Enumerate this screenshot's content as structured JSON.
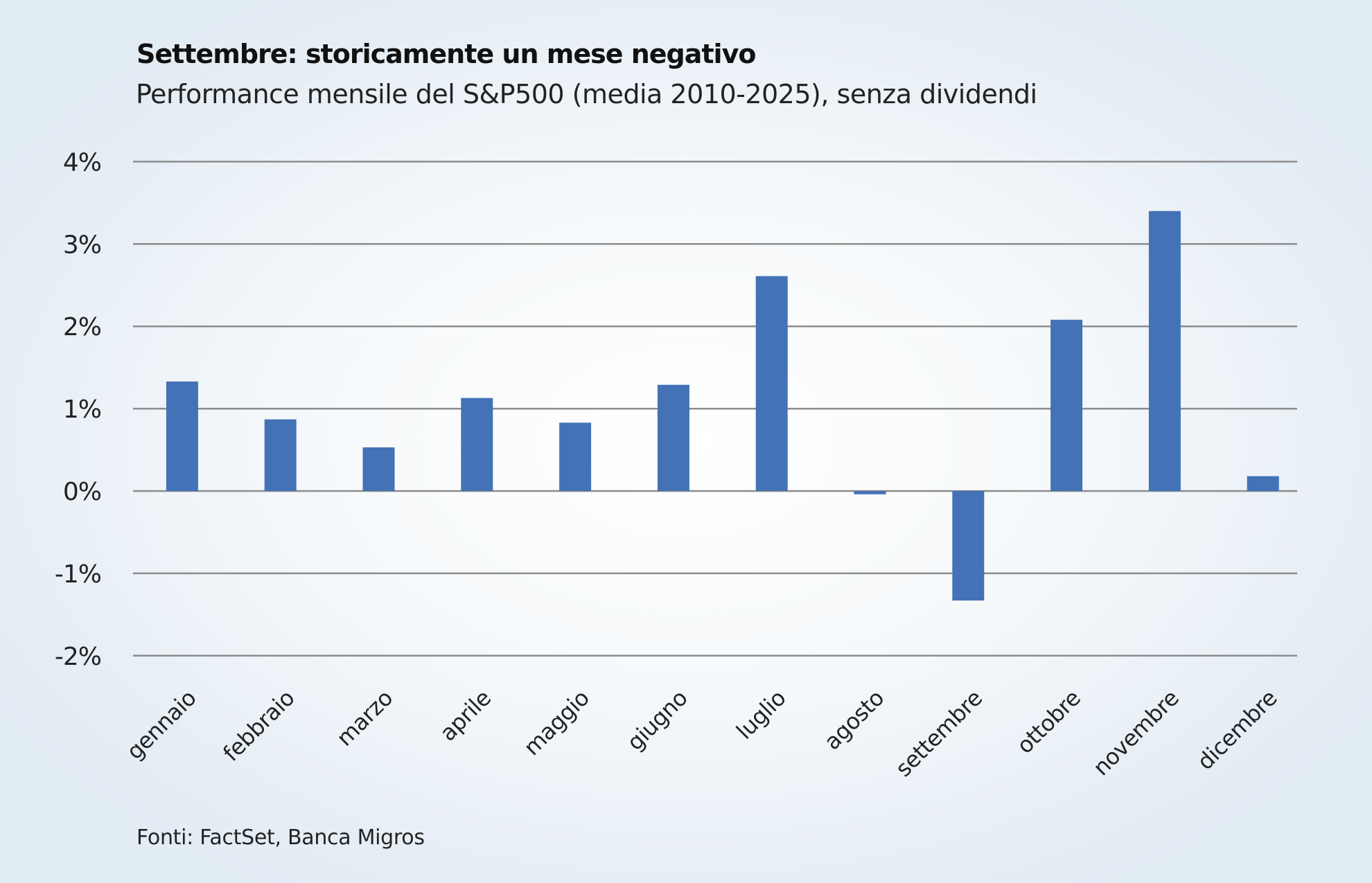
{
  "title": "Settembre: storicamente un mese negativo",
  "subtitle": "Performance mensile del S&P500 (media 2010-2025), senza dividendi",
  "footer": "Fonti: FactSet, Banca Migros",
  "chart_data": {
    "type": "bar",
    "title": "Settembre: storicamente un mese negativo",
    "subtitle": "Performance mensile del S&P500 (media 2010-2025), senza dividendi",
    "xlabel": "",
    "ylabel": "",
    "categories": [
      "gennaio",
      "febbraio",
      "marzo",
      "aprile",
      "maggio",
      "giugno",
      "luglio",
      "agosto",
      "settembre",
      "ottobre",
      "novembre",
      "dicembre"
    ],
    "values": [
      1.33,
      0.87,
      0.53,
      1.13,
      0.83,
      1.29,
      2.61,
      -0.04,
      -1.33,
      2.08,
      3.4,
      0.18
    ],
    "unit": "%",
    "ylim": [
      -2,
      4
    ],
    "yticks": [
      4,
      3,
      2,
      1,
      0,
      -1,
      -2
    ],
    "ytick_labels": [
      "4%",
      "3%",
      "2%",
      "1%",
      "0%",
      "-1%",
      "-2%"
    ],
    "grid": true,
    "legend": "none",
    "bar_color": "#4472b6",
    "source": "Fonti: FactSet, Banca Migros"
  }
}
